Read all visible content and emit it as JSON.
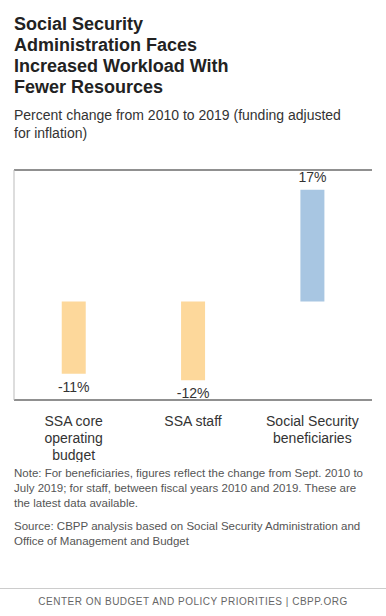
{
  "chart_data": {
    "type": "bar",
    "title": "Social Security Administration Faces Increased Workload With Fewer Resources",
    "subtitle": "Percent change from 2010 to 2019 (funding adjusted for inflation)",
    "categories": [
      "SSA core operating budget",
      "SSA staff",
      "Social Security beneficiaries"
    ],
    "values": [
      -11,
      -12,
      17
    ],
    "value_labels": [
      "-11%",
      "-12%",
      "17%"
    ],
    "colors": [
      "#fdd89b",
      "#fdd89b",
      "#a8c6e2"
    ],
    "ylim": [
      -15,
      20
    ],
    "yticks": [
      0
    ],
    "grid": true,
    "data_labels": true,
    "tick_labels": "x",
    "note": "Note: For beneficiaries, figures reflect the change from Sept. 2010 to July 2019; for staff, between fiscal years 2010 and 2019. These are the latest data available.",
    "source": "Source: CBPP analysis based on Social Security Administration and Office of Management and Budget",
    "footer": "CENTER ON BUDGET AND POLICY PRIORITIES | CBPP.ORG"
  }
}
